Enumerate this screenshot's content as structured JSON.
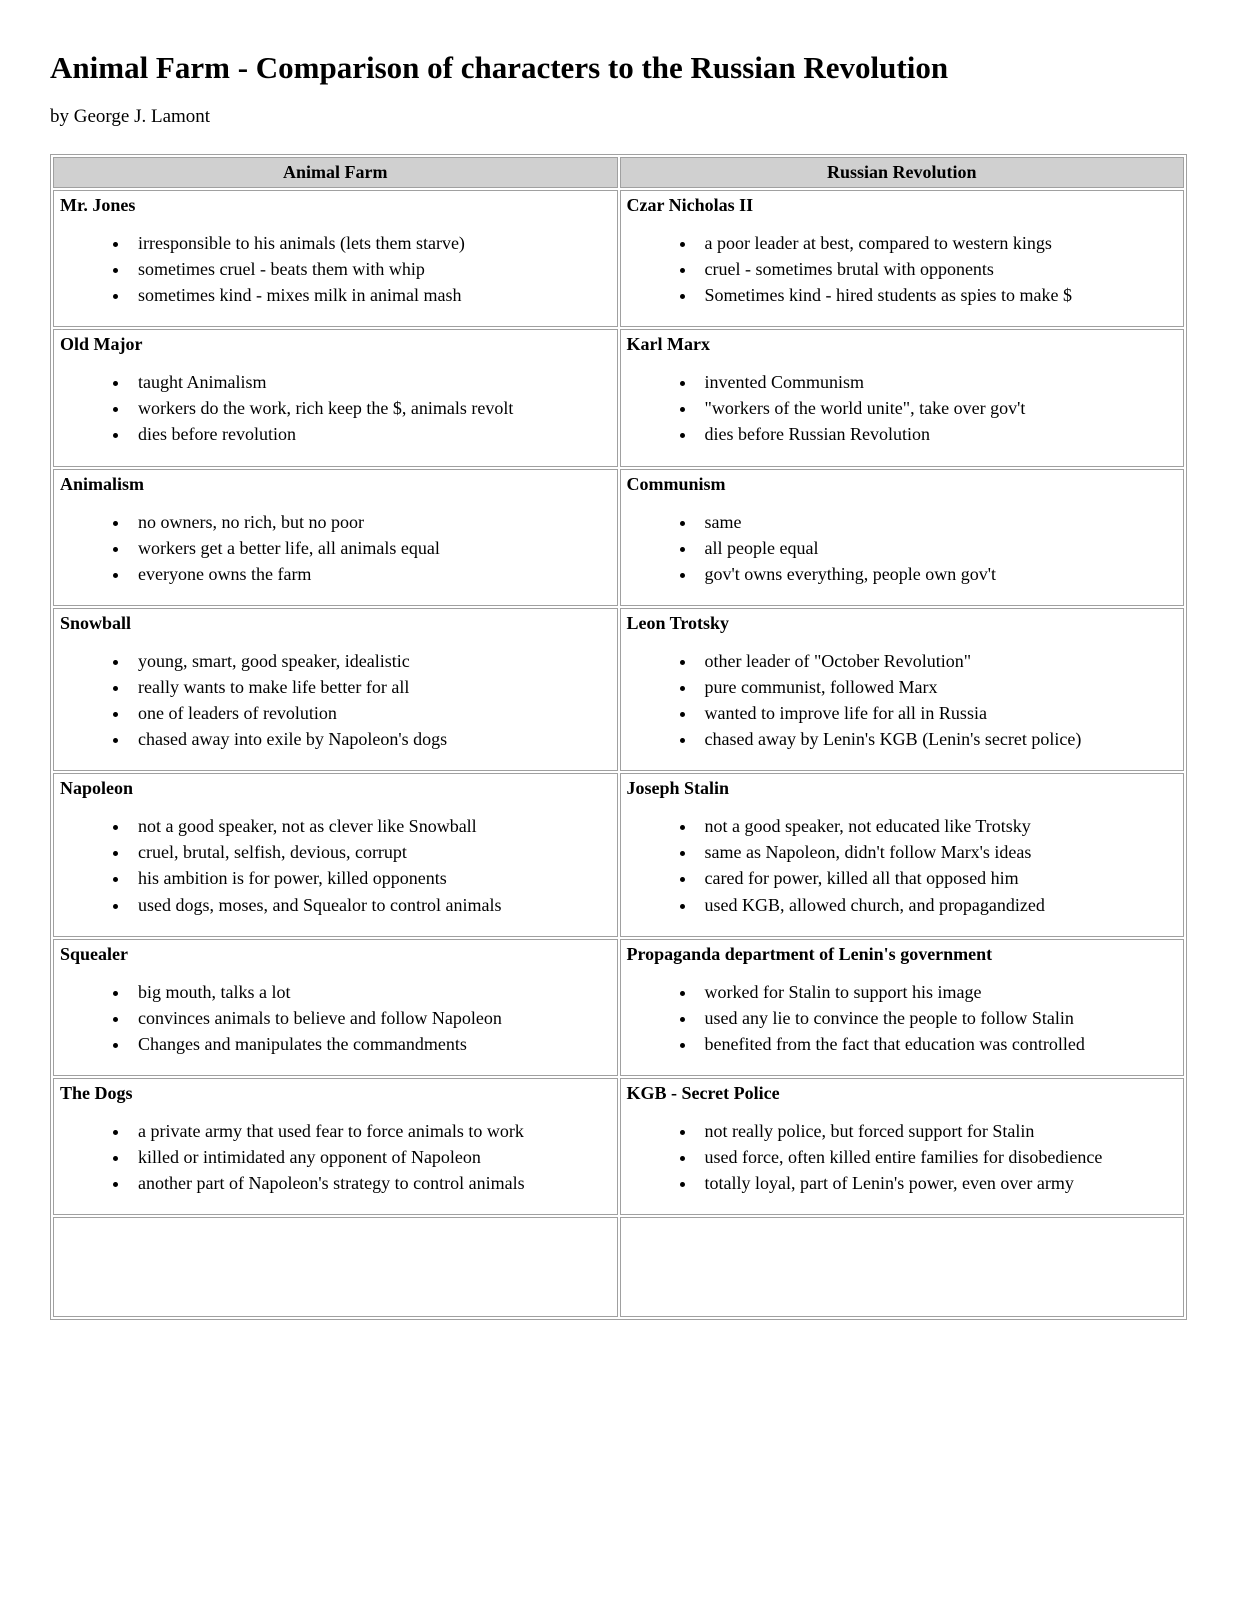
{
  "title": "Animal Farm - Comparison of characters to the Russian Revolution",
  "byline": "by George J. Lamont",
  "columns": [
    "Animal Farm",
    "Russian Revolution"
  ],
  "header_bg": "#d0d0d0",
  "border_color": "#a0a0a0",
  "rows": [
    {
      "left": {
        "title": "Mr. Jones",
        "points": [
          "irresponsible to his animals (lets them starve)",
          "sometimes cruel - beats them with whip",
          "sometimes kind - mixes milk in animal mash"
        ]
      },
      "right": {
        "title": "Czar Nicholas II",
        "points": [
          "a poor leader at best, compared to western kings",
          "cruel - sometimes brutal with opponents",
          "Sometimes kind - hired students as spies to make $"
        ]
      }
    },
    {
      "left": {
        "title": "Old Major",
        "points": [
          "taught Animalism",
          "workers do the work, rich keep the $, animals revolt",
          "dies before revolution"
        ]
      },
      "right": {
        "title": "Karl Marx",
        "points": [
          "invented Communism",
          "\"workers of the world unite\", take over gov't",
          "dies before Russian Revolution"
        ]
      }
    },
    {
      "left": {
        "title": "Animalism",
        "points": [
          "no owners, no rich, but no poor",
          "workers get a better life, all animals equal",
          "everyone owns the farm"
        ]
      },
      "right": {
        "title": "Communism",
        "points": [
          "same",
          "all people equal",
          "gov't owns everything, people own gov't"
        ]
      }
    },
    {
      "left": {
        "title": "Snowball",
        "points": [
          "young, smart, good speaker, idealistic",
          "really wants to make life better for all",
          "one of leaders of revolution",
          "chased away into exile by Napoleon's dogs"
        ]
      },
      "right": {
        "title": "Leon Trotsky",
        "points": [
          "other leader of \"October Revolution\"",
          "pure communist, followed Marx",
          "wanted to improve life for all in Russia",
          "chased away by Lenin's KGB (Lenin's secret police)"
        ]
      }
    },
    {
      "left": {
        "title": "Napoleon",
        "points": [
          "not a good speaker, not as clever like Snowball",
          "cruel, brutal, selfish, devious, corrupt",
          "his ambition is for power, killed opponents",
          "used dogs, moses, and Squealor to control animals"
        ]
      },
      "right": {
        "title": "Joseph Stalin",
        "points": [
          "not a good speaker, not educated like Trotsky",
          "same as Napoleon, didn't follow Marx's ideas",
          "cared for power, killed all that opposed him",
          "used KGB, allowed church, and propagandized"
        ]
      }
    },
    {
      "left": {
        "title": "Squealer",
        "points": [
          "big mouth, talks a lot",
          "convinces animals to believe and follow Napoleon",
          "Changes and manipulates the commandments"
        ]
      },
      "right": {
        "title": "Propaganda department of Lenin's government",
        "points": [
          "worked for Stalin to support his image",
          "used any lie to convince the people to follow Stalin",
          "benefited from the fact that education was controlled"
        ]
      }
    },
    {
      "left": {
        "title": "The Dogs",
        "points": [
          "a private army that used fear to force animals to work",
          "killed or intimidated any opponent of Napoleon",
          "another part of Napoleon's strategy to control animals"
        ]
      },
      "right": {
        "title": "KGB - Secret Police",
        "points": [
          "not really police, but forced support for Stalin",
          "used force, often killed entire families for disobedience",
          "totally loyal, part of Lenin's power, even over army"
        ]
      }
    }
  ]
}
